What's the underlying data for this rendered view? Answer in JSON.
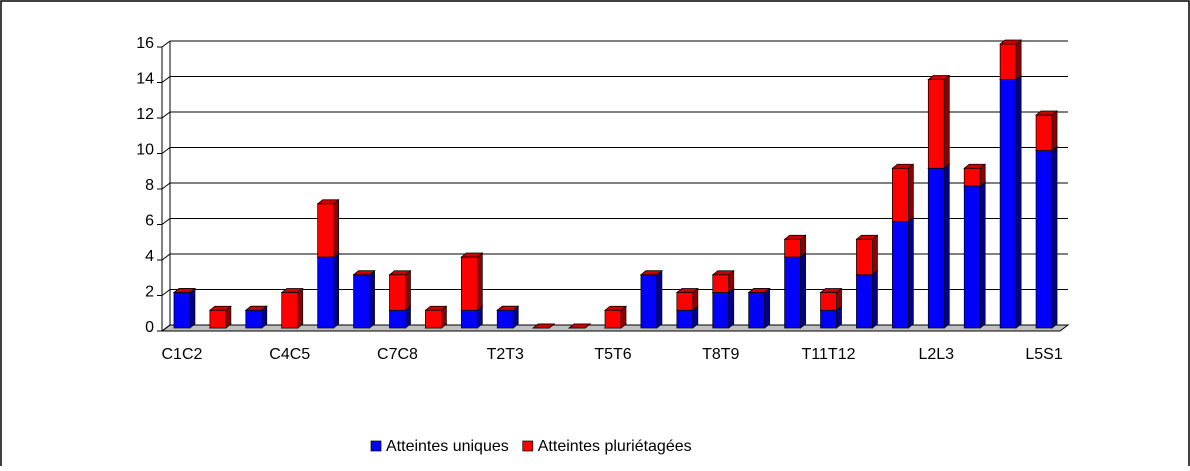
{
  "chart_data": {
    "type": "bar3d_stacked",
    "categories": [
      "C1C2",
      null,
      null,
      "C4C5",
      null,
      null,
      "C7C8",
      null,
      null,
      "T2T3",
      null,
      null,
      "T5T6",
      null,
      null,
      "T8T9",
      null,
      null,
      "T11T12",
      null,
      null,
      "L2L3",
      null,
      null,
      "L5S1"
    ],
    "series": [
      {
        "name": "Atteintes uniques",
        "color": "#0000ff",
        "values": [
          2,
          0,
          1,
          0,
          4,
          3,
          1,
          0,
          1,
          1,
          0,
          0,
          0,
          3,
          1,
          2,
          2,
          4,
          1,
          3,
          6,
          9,
          8,
          14,
          10
        ]
      },
      {
        "name": "Atteintes pluriétagées",
        "color": "#ff0000",
        "values": [
          0,
          1,
          0,
          2,
          3,
          0,
          2,
          1,
          3,
          0,
          0,
          0,
          1,
          0,
          1,
          1,
          0,
          1,
          1,
          2,
          3,
          5,
          1,
          2,
          2
        ]
      }
    ],
    "ylim": [
      0,
      16
    ],
    "yticks": [
      0,
      2,
      4,
      6,
      8,
      10,
      12,
      14,
      16
    ],
    "grid": true,
    "legend": "bottom"
  }
}
